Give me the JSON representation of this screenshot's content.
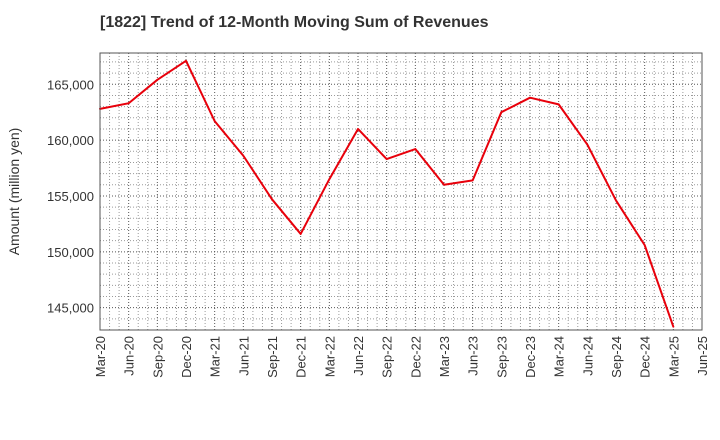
{
  "chart_data": {
    "type": "line",
    "title": "[1822]  Trend of 12-Month Moving Sum of Revenues",
    "xlabel": "",
    "ylabel": "Amount (million yen)",
    "ylim": [
      143000,
      167800
    ],
    "yticks": [
      145000,
      150000,
      155000,
      160000,
      165000
    ],
    "ytick_labels": [
      "145,000",
      "150,000",
      "155,000",
      "160,000",
      "165,000"
    ],
    "x": [
      "Mar-20",
      "Jun-20",
      "Sep-20",
      "Dec-20",
      "Mar-21",
      "Jun-21",
      "Sep-21",
      "Dec-21",
      "Mar-22",
      "Jun-22",
      "Sep-22",
      "Dec-22",
      "Mar-23",
      "Jun-23",
      "Sep-23",
      "Dec-23",
      "Mar-24",
      "Jun-24",
      "Sep-24",
      "Dec-24",
      "Mar-25",
      "Jun-25"
    ],
    "series": [
      {
        "color": "#e8000b",
        "values": [
          162800,
          163300,
          165400,
          167100,
          161700,
          158600,
          154700,
          151600,
          156500,
          161000,
          158300,
          159200,
          156000,
          156400,
          162500,
          163800,
          163200,
          159600,
          154600,
          150600,
          143300,
          null
        ]
      }
    ],
    "grid": true,
    "grid_style": "dotted",
    "legend": "none"
  }
}
